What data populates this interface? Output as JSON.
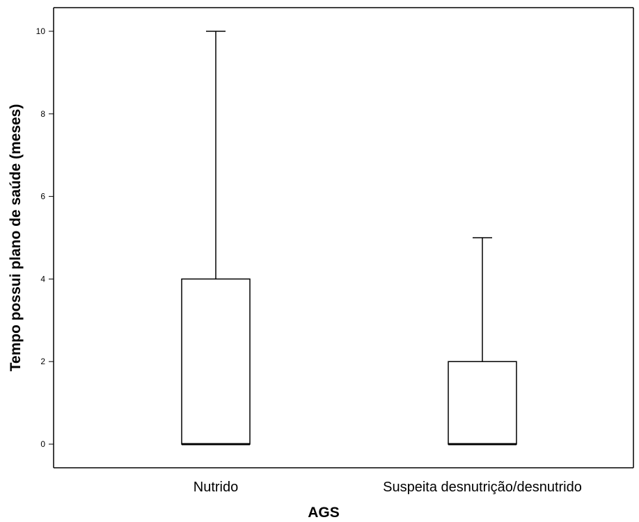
{
  "chart_data": {
    "type": "boxplot",
    "title": "",
    "xlabel": "AGS",
    "ylabel": "Tempo possui plano de saúde (meses)",
    "ylim": [
      -0.6,
      10.6
    ],
    "yticks": [
      0,
      2,
      4,
      6,
      8,
      10
    ],
    "grid": false,
    "categories": [
      "Nutrido",
      "Suspeita desnutrição/desnutrido"
    ],
    "boxes": [
      {
        "category": "Nutrido",
        "min": 0,
        "q1": 0,
        "median": 0,
        "q3": 4,
        "max": 10
      },
      {
        "category": "Suspeita desnutrição/desnutrido",
        "min": 0,
        "q1": 0,
        "median": 0,
        "q3": 2,
        "max": 5
      }
    ]
  }
}
